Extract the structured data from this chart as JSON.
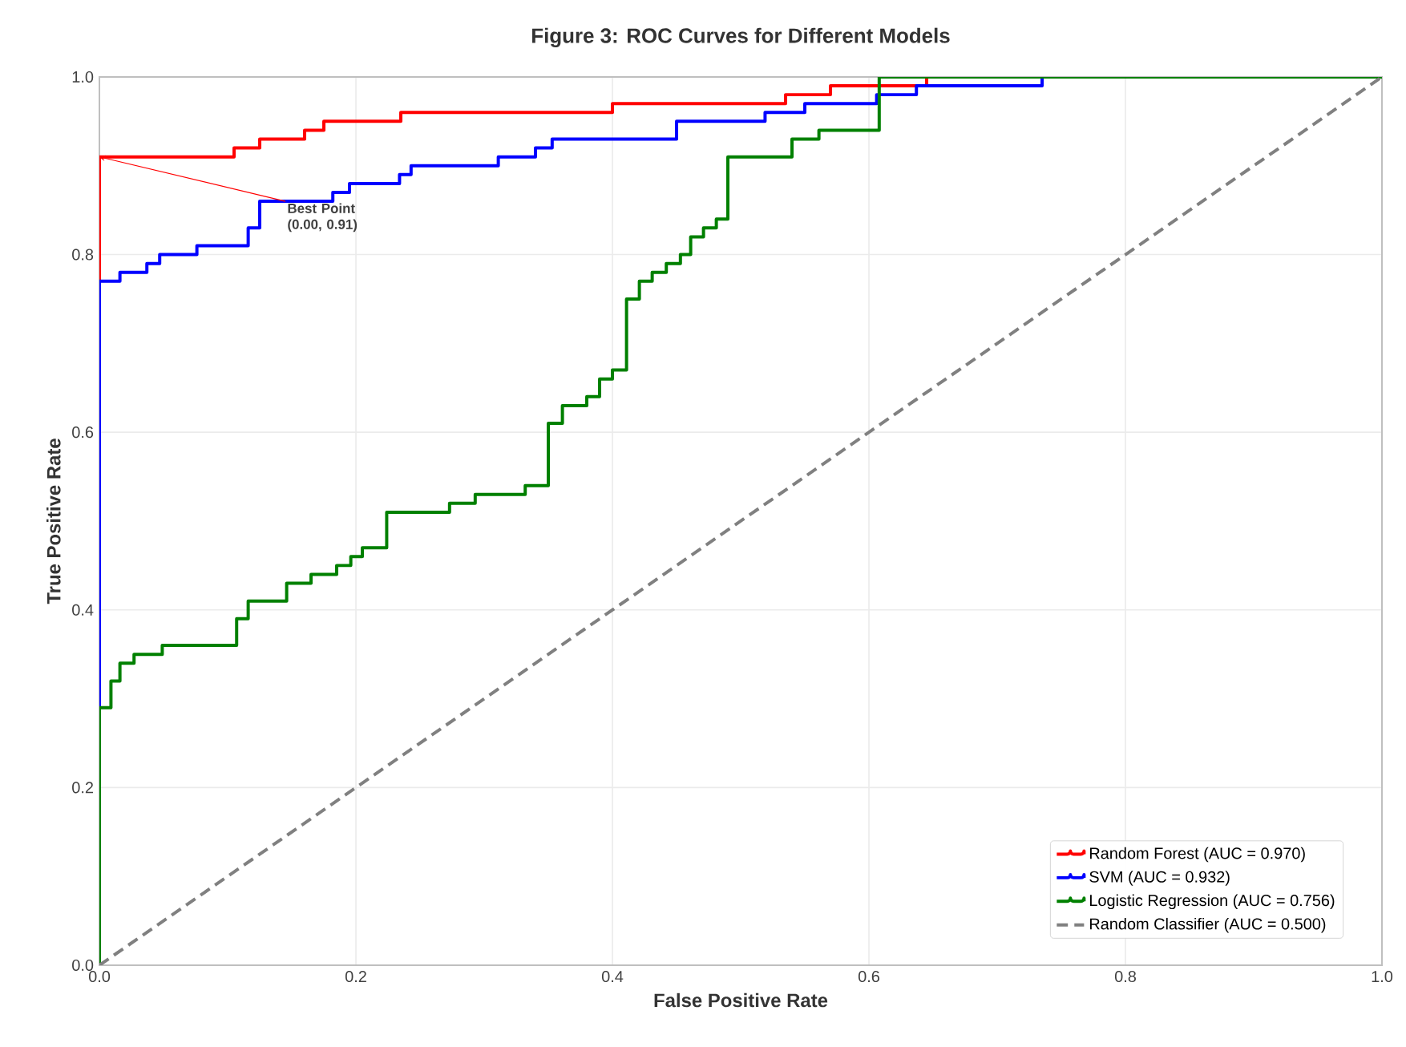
{
  "chart_data": {
    "type": "step",
    "title": "Figure 3: ROC Curves for Different Models",
    "xlabel": "False Positive Rate",
    "ylabel": "True Positive Rate",
    "xlim": [
      0,
      1
    ],
    "ylim": [
      0,
      1
    ],
    "xticks": [
      {
        "value": 0,
        "label": "0.0"
      },
      {
        "value": 0.2,
        "label": "0.2"
      },
      {
        "value": 0.4,
        "label": "0.4"
      },
      {
        "value": 0.6,
        "label": "0.6"
      },
      {
        "value": 0.8,
        "label": "0.8"
      },
      {
        "value": 1,
        "label": "1.0"
      }
    ],
    "yticks": [
      {
        "value": 0,
        "label": "0.0"
      },
      {
        "value": 0.2,
        "label": "0.2"
      },
      {
        "value": 0.4,
        "label": "0.4"
      },
      {
        "value": 0.6,
        "label": "0.6"
      },
      {
        "value": 0.8,
        "label": "0.8"
      },
      {
        "value": 1,
        "label": "1.0"
      }
    ],
    "grid": true,
    "legend": "bottom right",
    "marker": "none",
    "series": [
      {
        "name": "Random Forest (AUC = 0.970)",
        "color": "#ff0000",
        "x": [
          0,
          0,
          0.105,
          0.125,
          0.16,
          0.175,
          0.235,
          0.4,
          0.535,
          0.57,
          0.645
        ],
        "values": [
          0,
          0.91,
          0.92,
          0.93,
          0.94,
          0.95,
          0.96,
          0.97,
          0.98,
          0.99,
          1.0
        ]
      },
      {
        "name": "SVM (AUC = 0.932)",
        "color": "#0000ff",
        "x": [
          0,
          0,
          0.016,
          0.037,
          0.047,
          0.076,
          0.116,
          0.125,
          0.182,
          0.195,
          0.234,
          0.243,
          0.311,
          0.34,
          0.353,
          0.45,
          0.519,
          0.55,
          0.606,
          0.637,
          0.735
        ],
        "values": [
          0,
          0.77,
          0.78,
          0.79,
          0.8,
          0.81,
          0.83,
          0.86,
          0.87,
          0.88,
          0.89,
          0.9,
          0.91,
          0.92,
          0.93,
          0.95,
          0.96,
          0.97,
          0.98,
          0.99,
          1.0
        ]
      },
      {
        "name": "Logistic Regression (AUC = 0.756)",
        "color": "#008000",
        "x": [
          0,
          0,
          0.009,
          0.016,
          0.027,
          0.049,
          0.107,
          0.116,
          0.146,
          0.165,
          0.185,
          0.196,
          0.205,
          0.224,
          0.273,
          0.293,
          0.332,
          0.35,
          0.361,
          0.38,
          0.39,
          0.4,
          0.411,
          0.421,
          0.431,
          0.442,
          0.453,
          0.461,
          0.471,
          0.481,
          0.49,
          0.54,
          0.561,
          0.608,
          1.0
        ],
        "values": [
          0,
          0.29,
          0.32,
          0.34,
          0.35,
          0.36,
          0.39,
          0.41,
          0.43,
          0.44,
          0.45,
          0.46,
          0.47,
          0.51,
          0.52,
          0.53,
          0.54,
          0.61,
          0.63,
          0.64,
          0.66,
          0.67,
          0.75,
          0.77,
          0.78,
          0.79,
          0.8,
          0.82,
          0.83,
          0.84,
          0.91,
          0.93,
          0.94,
          1.0,
          1.0
        ]
      },
      {
        "name": "Random Classifier (AUC = 0.500)",
        "color": "#808080",
        "type": "line",
        "line_style": "dashed",
        "x": [
          0,
          1
        ],
        "values": [
          0,
          1
        ]
      }
    ],
    "annotations": [
      {
        "text": "Best Point (0.00, 0.91)",
        "x": 0,
        "y": 0.91
      }
    ]
  }
}
